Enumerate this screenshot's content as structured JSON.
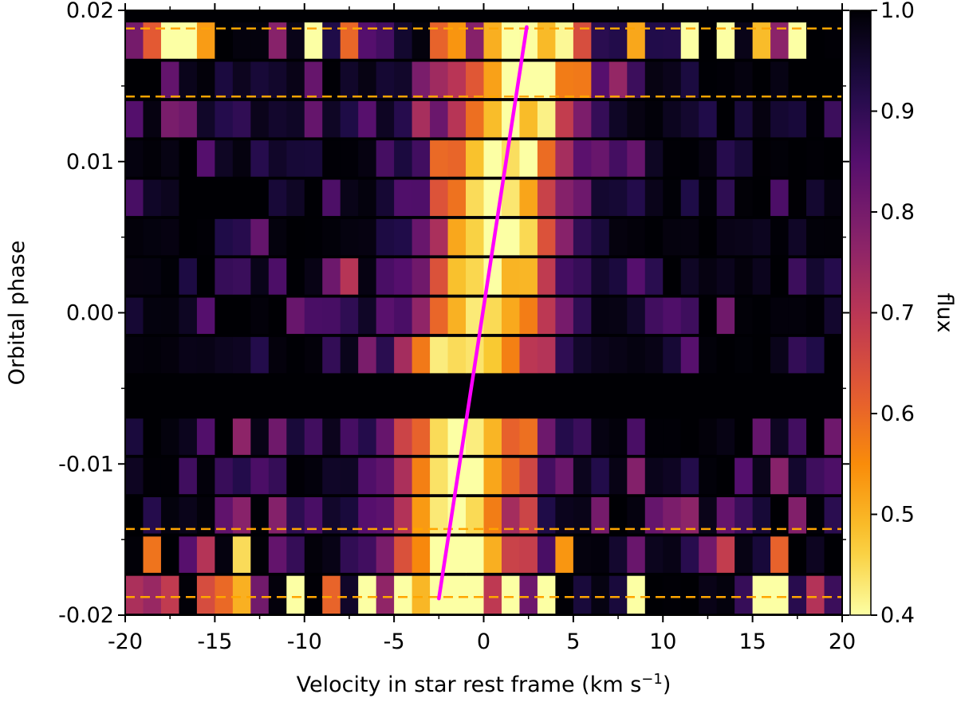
{
  "chart_data": {
    "type": "heatmap",
    "xlabel": "Velocity in star rest frame (km s",
    "xlabel_sup": "−1",
    "xlabel_end": ")",
    "ylabel": "Orbital phase",
    "colorbar_label": "flux",
    "colormap": "inferno",
    "xlim": [
      -20,
      20
    ],
    "ylim": [
      -0.02,
      0.02
    ],
    "x_ticks": [
      -20,
      -15,
      -10,
      -5,
      0,
      5,
      10,
      15,
      20
    ],
    "x_tick_labels": [
      "-20",
      "-15",
      "-10",
      "-5",
      "0",
      "5",
      "10",
      "15",
      "20"
    ],
    "y_ticks": [
      -0.02,
      -0.01,
      0.0,
      0.01,
      0.02
    ],
    "y_tick_labels": [
      "-0.02",
      "-0.01",
      "0.00",
      "0.01",
      "0.02"
    ],
    "colorbar_range": [
      0.4,
      1.0
    ],
    "colorbar_ticks": [
      0.4,
      0.5,
      0.6,
      0.7,
      0.8,
      0.9,
      1.0
    ],
    "colorbar_tick_labels": [
      "0.4",
      "0.5",
      "0.6",
      "0.7",
      "0.8",
      "0.9",
      "1.0"
    ],
    "velocity_bin_width": 1.0,
    "rows": [
      {
        "phase_min": -0.0199,
        "phase_max": -0.0174,
        "core_center": -2.3,
        "core_width": 2.0,
        "core_depth": 0.6,
        "noise": 0.62
      },
      {
        "phase_min": -0.0172,
        "phase_max": -0.0148,
        "core_center": -1.8,
        "core_width": 2.6,
        "core_depth": 0.55,
        "noise": 0.35
      },
      {
        "phase_min": -0.0146,
        "phase_max": -0.0122,
        "core_center": -1.6,
        "core_width": 2.4,
        "core_depth": 0.6,
        "noise": 0.15
      },
      {
        "phase_min": -0.012,
        "phase_max": -0.0096,
        "core_center": -1.2,
        "core_width": 2.7,
        "core_depth": 0.58,
        "noise": 0.15
      },
      {
        "phase_min": -0.0094,
        "phase_max": -0.007,
        "core_center": -1.0,
        "core_width": 2.8,
        "core_depth": 0.58,
        "noise": 0.15
      },
      {
        "phase_min": -0.004,
        "phase_max": -0.0016,
        "core_center": -0.4,
        "core_width": 2.6,
        "core_depth": 0.56,
        "noise": 0.12
      },
      {
        "phase_min": -0.0014,
        "phase_max": 0.001,
        "core_center": -0.2,
        "core_width": 2.5,
        "core_depth": 0.57,
        "noise": 0.12
      },
      {
        "phase_min": 0.0012,
        "phase_max": 0.0036,
        "core_center": 0.2,
        "core_width": 2.5,
        "core_depth": 0.56,
        "noise": 0.12
      },
      {
        "phase_min": 0.0038,
        "phase_max": 0.0062,
        "core_center": 0.5,
        "core_width": 2.5,
        "core_depth": 0.57,
        "noise": 0.12
      },
      {
        "phase_min": 0.0064,
        "phase_max": 0.0088,
        "core_center": 0.8,
        "core_width": 2.6,
        "core_depth": 0.56,
        "noise": 0.12
      },
      {
        "phase_min": 0.009,
        "phase_max": 0.0114,
        "core_center": 1.2,
        "core_width": 2.7,
        "core_depth": 0.56,
        "noise": 0.13
      },
      {
        "phase_min": 0.0116,
        "phase_max": 0.014,
        "core_center": 1.5,
        "core_width": 2.6,
        "core_depth": 0.55,
        "noise": 0.13
      },
      {
        "phase_min": 0.0142,
        "phase_max": 0.0166,
        "core_center": 2.0,
        "core_width": 2.8,
        "core_depth": 0.55,
        "noise": 0.14
      },
      {
        "phase_min": 0.0168,
        "phase_max": 0.0192,
        "core_center": 2.3,
        "core_width": 2.0,
        "core_depth": 0.6,
        "noise": 0.6
      }
    ],
    "model_line": {
      "color": "#ff00ff",
      "x": [
        -2.5,
        2.4
      ],
      "y": [
        -0.0189,
        0.0189
      ]
    },
    "dashed_lines": {
      "color": "#ffa500",
      "phases": [
        0.0188,
        0.0143,
        -0.0143,
        -0.0188
      ]
    }
  }
}
